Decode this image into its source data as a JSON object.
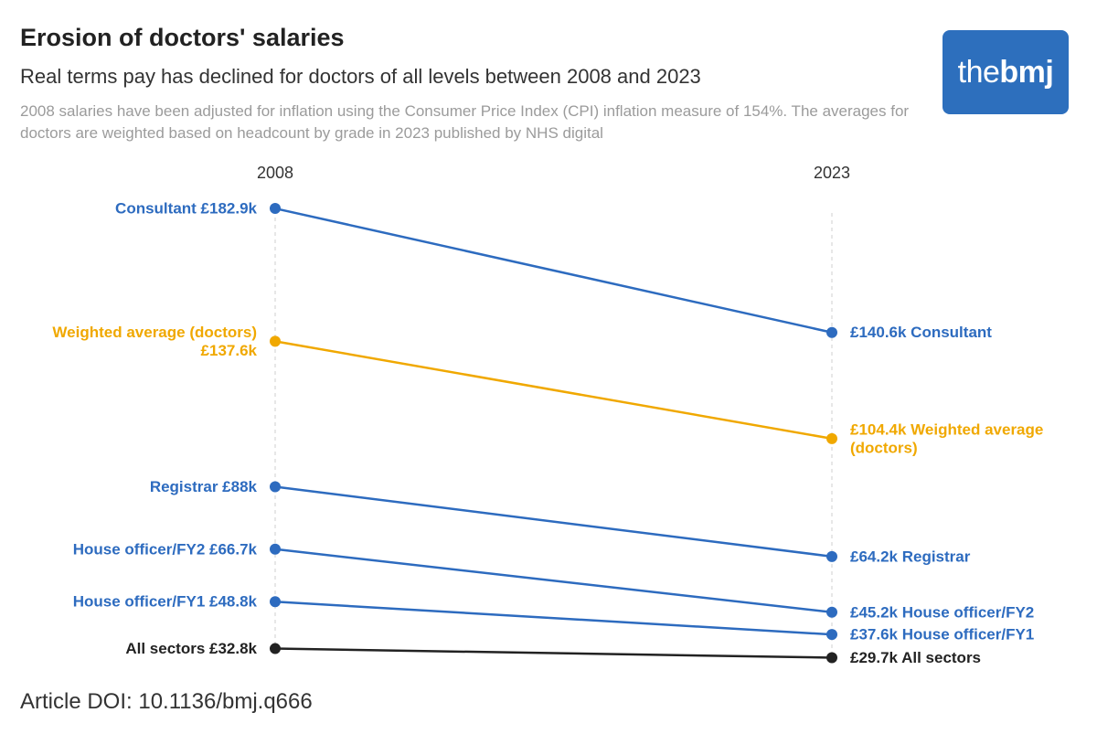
{
  "title": "Erosion of doctors' salaries",
  "subtitle": "Real terms pay has declined for doctors of all levels between 2008 and 2023",
  "note": "2008 salaries have been adjusted for inflation using the Consumer Price Index (CPI) inflation measure of 154%. The averages for doctors are weighted based on headcount by grade in 2023 published by NHS digital",
  "doi": "Article DOI: 10.1136/bmj.q666",
  "logo": {
    "part1": "the",
    "part2": "bmj",
    "bg_color": "#2d6fbd"
  },
  "colors": {
    "blue": "#2d6bbf",
    "yellow": "#f0a800",
    "black": "#222222",
    "gridline": "#cfcfcf"
  },
  "chart_data": {
    "type": "line",
    "x": [
      "2008",
      "2023"
    ],
    "unit": "£k",
    "series": [
      {
        "name": "Consultant",
        "values": [
          182.9,
          140.6
        ],
        "color": "blue",
        "left_label": [
          "Consultant £182.9k"
        ],
        "right_label": [
          "£140.6k Consultant"
        ]
      },
      {
        "name": "Weighted average (doctors)",
        "values": [
          137.6,
          104.4
        ],
        "color": "yellow",
        "left_label": [
          "Weighted average (doctors)",
          "£137.6k"
        ],
        "right_label": [
          "£104.4k Weighted average",
          "(doctors)"
        ]
      },
      {
        "name": "Registrar",
        "values": [
          88,
          64.2
        ],
        "color": "blue",
        "left_label": [
          "Registrar £88k"
        ],
        "right_label": [
          "£64.2k Registrar"
        ]
      },
      {
        "name": "House officer/FY2",
        "values": [
          66.7,
          45.2
        ],
        "color": "blue",
        "left_label": [
          "House officer/FY2 £66.7k"
        ],
        "right_label": [
          "£45.2k House officer/FY2"
        ]
      },
      {
        "name": "House officer/FY1",
        "values": [
          48.8,
          37.6
        ],
        "color": "blue",
        "left_label": [
          "House officer/FY1 £48.8k"
        ],
        "right_label": [
          "£37.6k House officer/FY1"
        ]
      },
      {
        "name": "All sectors",
        "values": [
          32.8,
          29.7
        ],
        "color": "black",
        "left_label": [
          "All sectors £32.8k"
        ],
        "right_label": [
          "£29.7k All sectors"
        ]
      }
    ]
  }
}
